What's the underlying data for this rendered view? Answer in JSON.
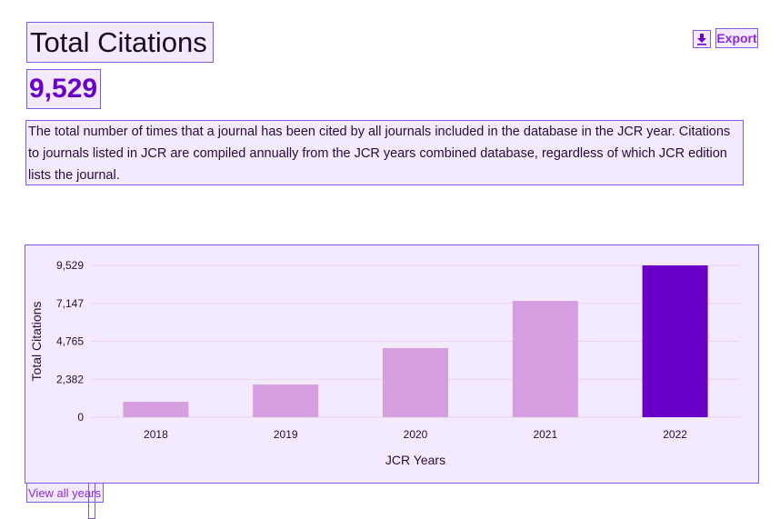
{
  "header": {
    "title": "Total Citations",
    "value": "9,529",
    "export_label": "Export",
    "export_icon": "download-icon"
  },
  "description": "The total number of times that a journal has been cited by all journals included in the database in the JCR year. Citations to journals listed in JCR are compiled annually from the JCR years combined database, regardless of which JCR edition lists the journal.",
  "footer": {
    "view_all": "View all years"
  },
  "chart_data": {
    "type": "bar",
    "xlabel": "JCR Years",
    "ylabel": "Total Citations",
    "categories": [
      "2018",
      "2019",
      "2020",
      "2021",
      "2022"
    ],
    "values": [
      970,
      2050,
      4340,
      7300,
      9529
    ],
    "yticks": [
      "0",
      "2,382",
      "4,765",
      "7,147",
      "9,529"
    ],
    "ylim": [
      0,
      9529
    ],
    "grid": true,
    "colors": {
      "default": "#d69fdf",
      "highlight": "#6a00c8"
    },
    "highlight_category": "2022"
  }
}
